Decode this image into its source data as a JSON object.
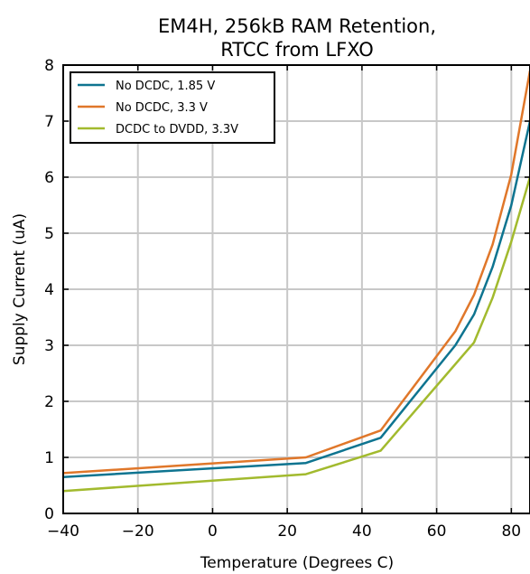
{
  "chart_data": {
    "type": "line",
    "title_line1": "EM4H, 256kB RAM Retention,",
    "title_line2": "RTCC from LFXO",
    "xlabel": "Temperature (Degrees C)",
    "ylabel": "Supply Current (uA)",
    "xlim": [
      -40,
      85
    ],
    "ylim": [
      0,
      8
    ],
    "xticks": [
      -40,
      -20,
      0,
      20,
      40,
      60,
      80
    ],
    "xtick_labels": [
      "−40",
      "−20",
      "0",
      "20",
      "40",
      "60",
      "80"
    ],
    "yticks": [
      0,
      1,
      2,
      3,
      4,
      5,
      6,
      7,
      8
    ],
    "ytick_labels": [
      "0",
      "1",
      "2",
      "3",
      "4",
      "5",
      "6",
      "7",
      "8"
    ],
    "grid": true,
    "legend_position": "top-left",
    "series": [
      {
        "name": "No DCDC, 1.85 V",
        "color": "#0e7490",
        "x": [
          -40,
          25,
          45,
          65,
          70,
          75,
          80,
          85
        ],
        "y": [
          0.65,
          0.9,
          1.35,
          3.0,
          3.55,
          4.4,
          5.5,
          7.0
        ]
      },
      {
        "name": "No DCDC, 3.3 V",
        "color": "#e0772a",
        "x": [
          -40,
          25,
          45,
          65,
          70,
          75,
          80,
          85
        ],
        "y": [
          0.72,
          1.0,
          1.48,
          3.25,
          3.9,
          4.8,
          6.05,
          7.9
        ]
      },
      {
        "name": "DCDC to DVDD, 3.3V",
        "color": "#a2ba2e",
        "x": [
          -40,
          25,
          45,
          70,
          75,
          80,
          85
        ],
        "y": [
          0.4,
          0.7,
          1.12,
          3.05,
          3.85,
          4.85,
          6.0
        ]
      }
    ]
  }
}
